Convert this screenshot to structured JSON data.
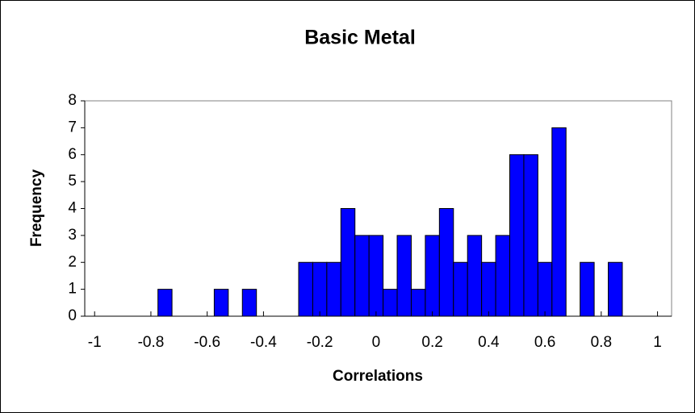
{
  "chart_data": {
    "type": "histogram",
    "title": "Basic Metal",
    "x_label": "Correlations",
    "y_label": "Frequency",
    "bins": [
      -0.775,
      -0.725,
      -0.675,
      -0.625,
      -0.575,
      -0.525,
      -0.475,
      -0.425,
      -0.375,
      -0.325,
      -0.275,
      -0.225,
      -0.175,
      -0.125,
      -0.075,
      -0.025,
      0.025,
      0.075,
      0.125,
      0.175,
      0.225,
      0.275,
      0.325,
      0.375,
      0.425,
      0.475,
      0.525,
      0.575,
      0.625,
      0.675,
      0.725,
      0.775,
      0.825,
      0.875
    ],
    "values": [
      1,
      0,
      0,
      0,
      1,
      0,
      1,
      0,
      0,
      0,
      2,
      2,
      2,
      4,
      3,
      3,
      1,
      3,
      1,
      3,
      4,
      2,
      3,
      2,
      3,
      6,
      6,
      2,
      7,
      0,
      2,
      0,
      2
    ],
    "color": "#0000ff",
    "xlim": [
      -1.035,
      1.05
    ],
    "xticks": [
      -1,
      -0.8,
      -0.6,
      -0.4,
      -0.2,
      0,
      0.2,
      0.4,
      0.6,
      0.8,
      1
    ],
    "ylim": [
      0,
      8
    ],
    "yticks": [
      0,
      1,
      2,
      3,
      4,
      5,
      6,
      7,
      8
    ]
  }
}
